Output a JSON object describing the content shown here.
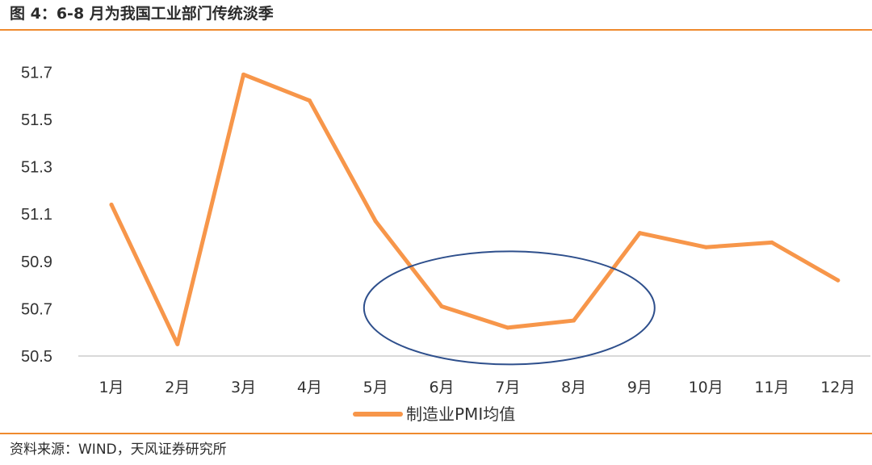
{
  "header": {
    "title": "图 4：6-8 月为我国工业部门传统淡季"
  },
  "footer": {
    "source": "资料来源：WIND，天风证券研究所"
  },
  "colors": {
    "line": "#f7964a",
    "ellipse": "#2e4f8c",
    "rule": "#ef8a2e",
    "axis": "#d9d9d9"
  },
  "chart_data": {
    "type": "line",
    "title": "",
    "xlabel": "",
    "ylabel": "",
    "categories": [
      "1月",
      "2月",
      "3月",
      "4月",
      "5月",
      "6月",
      "7月",
      "8月",
      "9月",
      "10月",
      "11月",
      "12月"
    ],
    "series": [
      {
        "name": "制造业PMI均值",
        "values": [
          51.14,
          50.55,
          51.69,
          51.58,
          51.07,
          50.71,
          50.62,
          50.65,
          51.02,
          50.96,
          50.98,
          50.82
        ]
      }
    ],
    "yticks": [
      "50.5",
      "50.7",
      "50.9",
      "51.1",
      "51.3",
      "51.5",
      "51.7"
    ],
    "ylim": [
      50.5,
      51.7
    ],
    "grid": false,
    "legend": "bottom-center",
    "annotation": {
      "type": "ellipse",
      "from_category": "6月",
      "to_category": "8月",
      "y_center": 50.7
    }
  }
}
